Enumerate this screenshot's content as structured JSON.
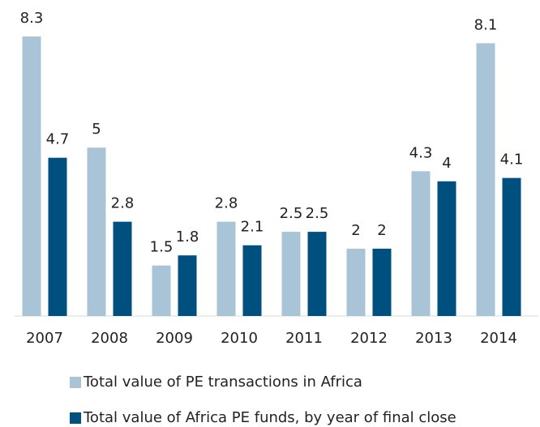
{
  "chart_data": {
    "type": "bar",
    "categories": [
      "2007",
      "2008",
      "2009",
      "2010",
      "2011",
      "2012",
      "2013",
      "2014"
    ],
    "series": [
      {
        "name": "Total value of PE transactions in Africa",
        "color": "#a9c4d6",
        "values": [
          8.3,
          5,
          1.5,
          2.8,
          2.5,
          2,
          4.3,
          8.1
        ]
      },
      {
        "name": "Total value of Africa PE funds, by year of final close",
        "color": "#00507f",
        "values": [
          4.7,
          2.8,
          1.8,
          2.1,
          2.5,
          2,
          4,
          4.1
        ]
      }
    ],
    "ylim": [
      0,
      9
    ]
  }
}
